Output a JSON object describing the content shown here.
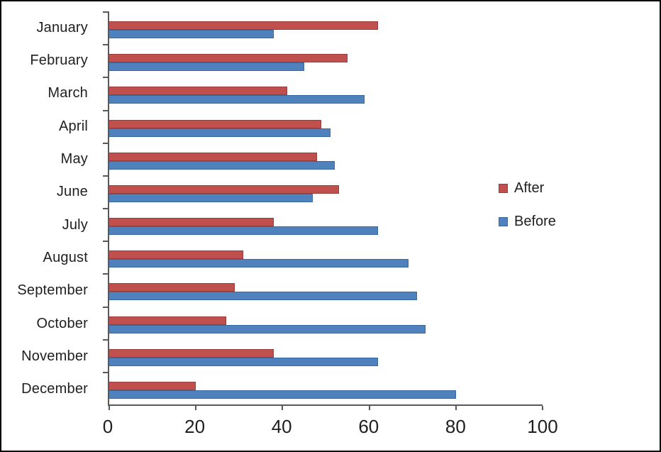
{
  "chart_data": {
    "type": "bar",
    "orientation": "horizontal",
    "title": "",
    "xlabel": "",
    "ylabel": "",
    "categories": [
      "January",
      "February",
      "March",
      "April",
      "May",
      "June",
      "July",
      "August",
      "September",
      "October",
      "November",
      "December"
    ],
    "series": [
      {
        "name": "After",
        "color": "#C0504D",
        "values": [
          62,
          55,
          41,
          49,
          48,
          53,
          38,
          31,
          29,
          27,
          38,
          20
        ]
      },
      {
        "name": "Before",
        "color": "#4F81BD",
        "values": [
          38,
          45,
          59,
          51,
          52,
          47,
          62,
          69,
          71,
          73,
          62,
          80
        ]
      }
    ],
    "xlim": [
      0,
      100
    ],
    "xticks": [
      0,
      20,
      40,
      60,
      80,
      100
    ],
    "xtick_labels": [
      "0",
      "20",
      "40",
      "60",
      "80",
      "100"
    ],
    "grid": false,
    "legend_position": "right-middle",
    "background": "#ffffff",
    "axis_color": "#595959"
  },
  "legend": {
    "items": [
      {
        "label": "After",
        "color": "#C0504D"
      },
      {
        "label": "Before",
        "color": "#4F81BD"
      }
    ]
  }
}
